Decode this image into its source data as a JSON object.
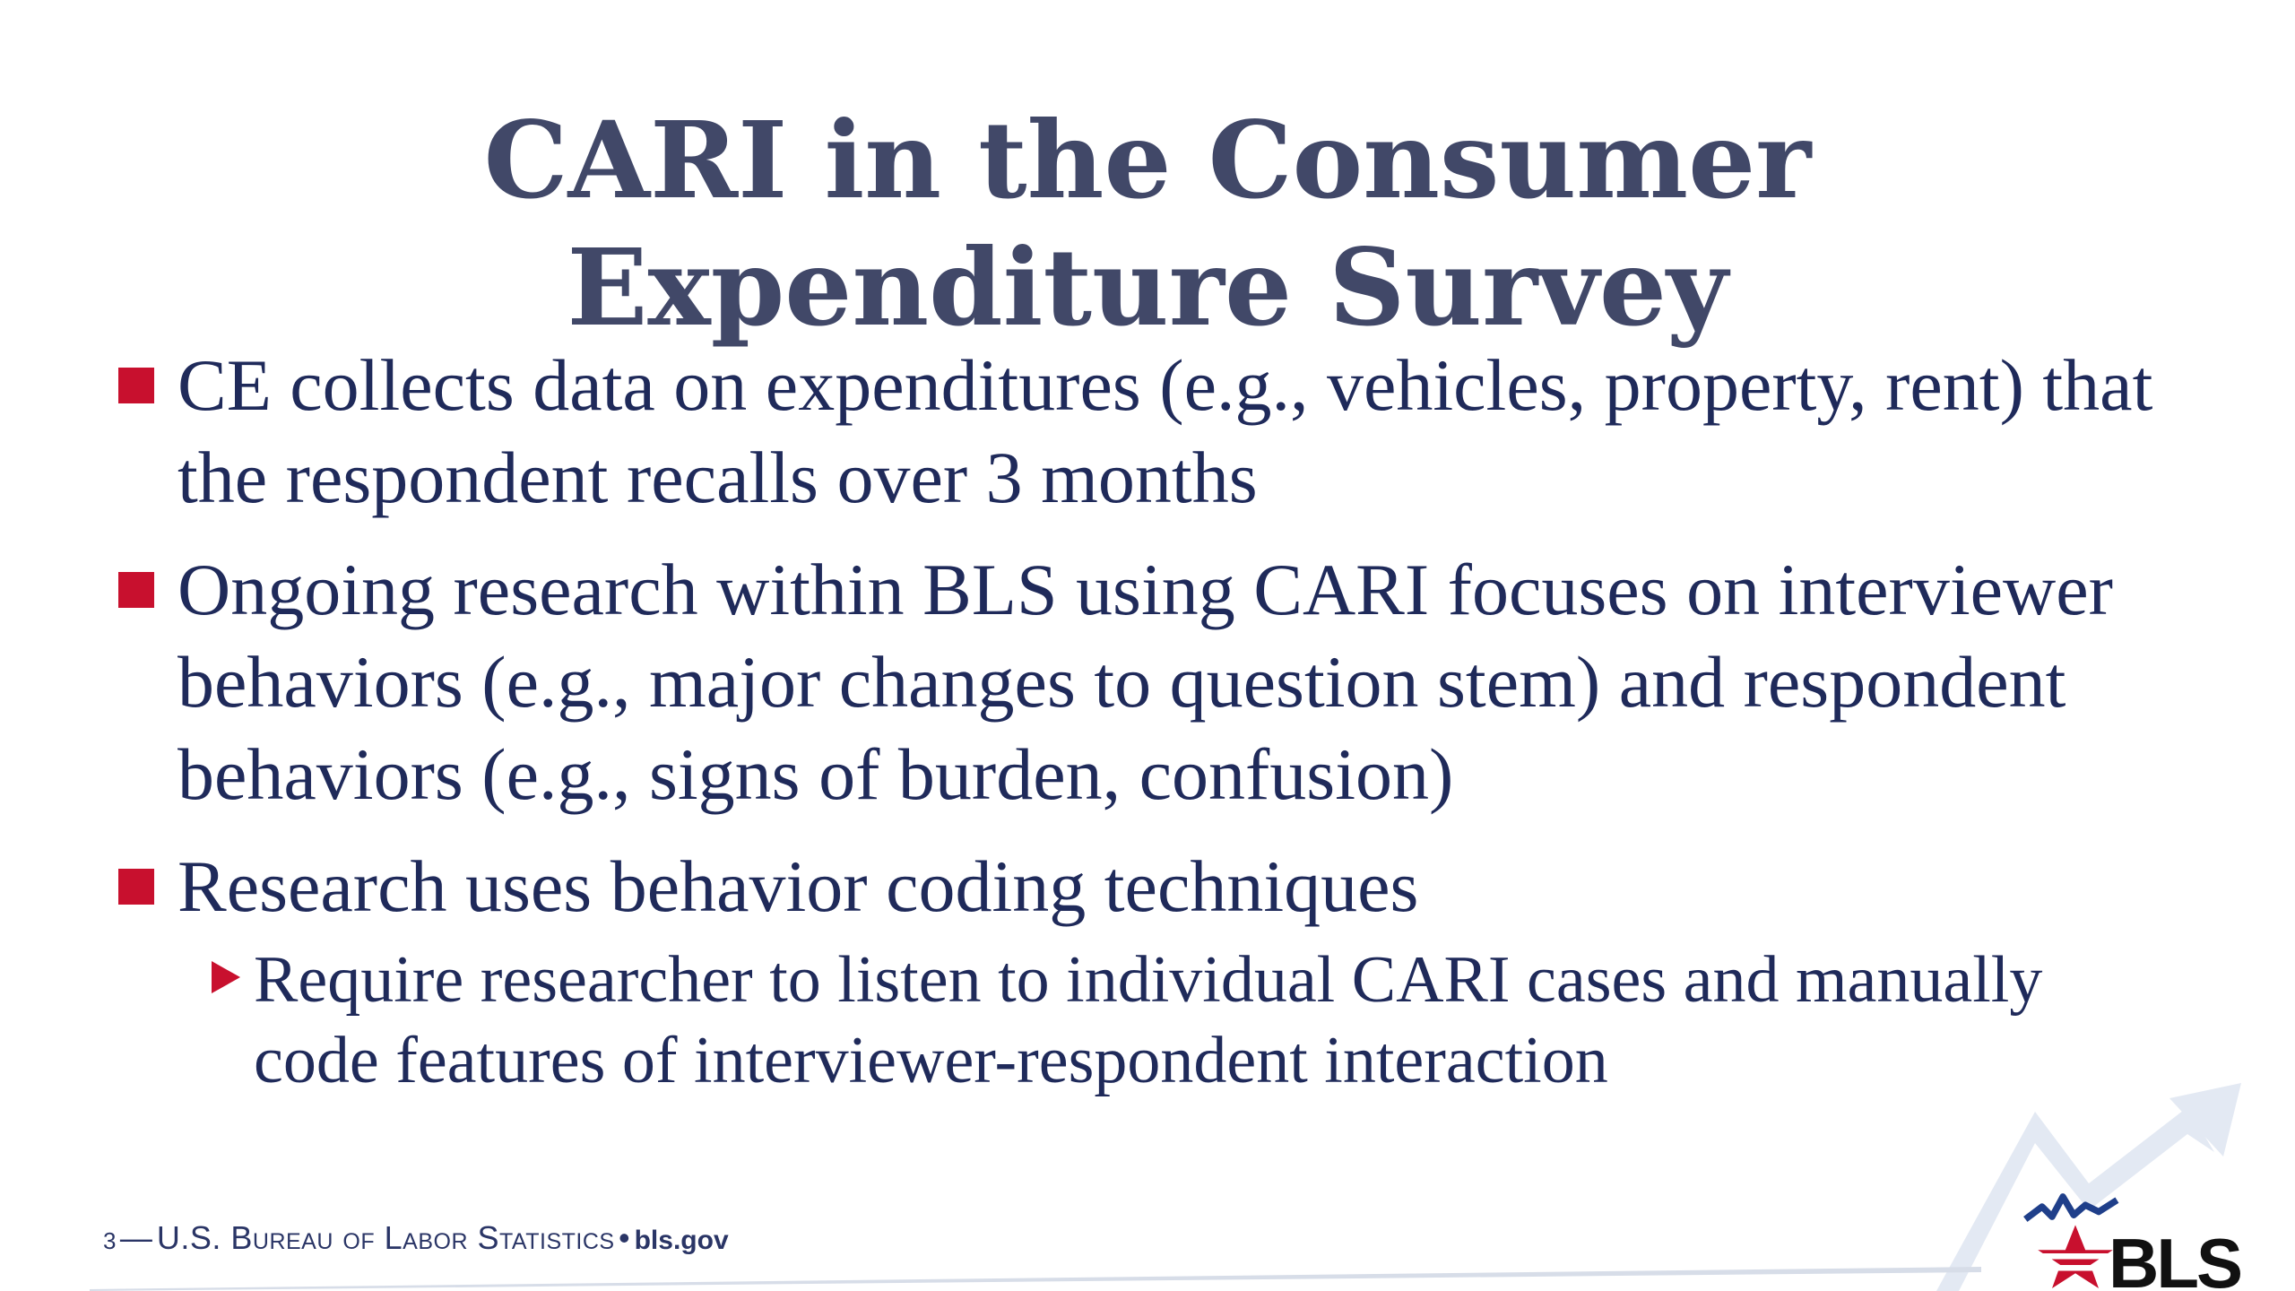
{
  "slide": {
    "title": "CARI in the Consumer Expenditure Survey",
    "bullets": [
      "CE collects data on expenditures (e.g., vehicles, property, rent) that the respondent recalls over 3 months",
      "Ongoing research within BLS using CARI focuses on interviewer behaviors (e.g., major changes to question stem) and respondent behaviors (e.g., signs of burden, confusion)",
      "Research uses behavior coding techniques"
    ],
    "sub_bullets": [
      "Require researcher to listen to individual CARI cases and manually code features of interviewer-respondent interaction"
    ]
  },
  "footer": {
    "page_number": "3",
    "separator": "—",
    "organization": "U.S. Bureau of Labor Statistics",
    "dot": "•",
    "website": "bls.gov"
  },
  "logo": {
    "text": "BLS",
    "icon": "bls-star-logo-icon"
  },
  "colors": {
    "title": "#414868",
    "body": "#1f2a5a",
    "bullet_accent": "#c8102e",
    "arrow": "#dde6f2",
    "logo_red": "#c8102e",
    "logo_blue": "#1f3f8a"
  }
}
